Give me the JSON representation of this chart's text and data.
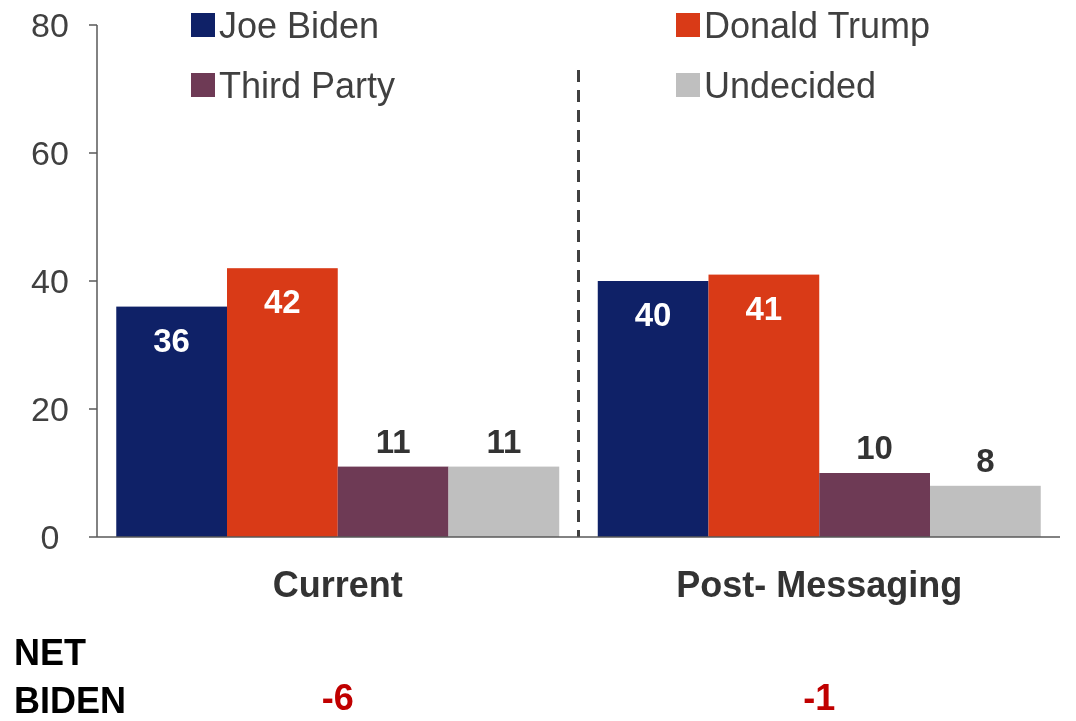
{
  "chart_data": {
    "type": "bar",
    "categories": [
      "Current",
      "Post- Messaging"
    ],
    "series": [
      {
        "name": "Joe Biden",
        "color": "#0f2167",
        "values": [
          36,
          40
        ]
      },
      {
        "name": "Donald Trump",
        "color": "#d93a17",
        "values": [
          42,
          41
        ]
      },
      {
        "name": "Third Party",
        "color": "#6e3a55",
        "values": [
          11,
          10
        ]
      },
      {
        "name": "Undecided",
        "color": "#bfbfbf",
        "values": [
          11,
          8
        ]
      }
    ],
    "ylim": [
      0,
      80
    ],
    "yticks": [
      0,
      20,
      40,
      60,
      80
    ],
    "grid": false,
    "legend": "top",
    "data_labels": true,
    "annotations": [
      "NET BIDEN",
      "-6",
      "-1"
    ]
  }
}
